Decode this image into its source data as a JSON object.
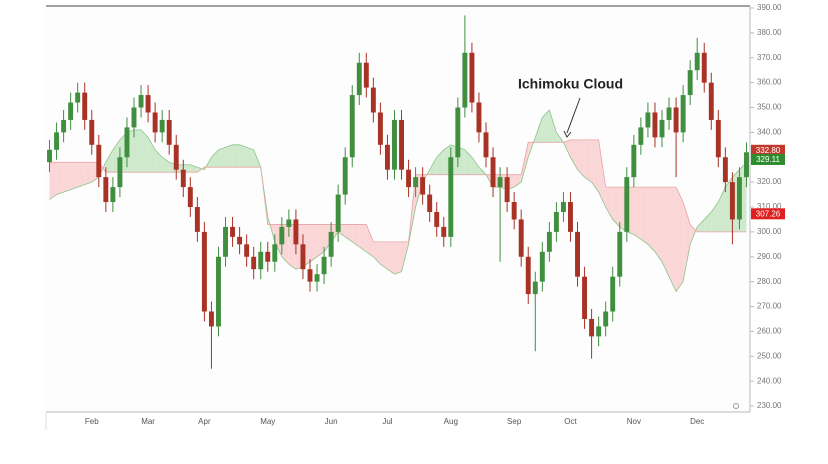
{
  "chart_data": {
    "type": "candlestick",
    "annotation": "Ichimoku Cloud",
    "categories": [
      null,
      null,
      null,
      null,
      null,
      null,
      "Feb",
      null,
      null,
      null,
      null,
      null,
      null,
      null,
      "Mar",
      null,
      null,
      null,
      null,
      null,
      null,
      null,
      "Apr",
      null,
      null,
      null,
      null,
      null,
      null,
      null,
      null,
      "May",
      null,
      null,
      null,
      null,
      null,
      null,
      null,
      null,
      "Jun",
      null,
      null,
      null,
      null,
      null,
      null,
      null,
      "Jul",
      null,
      null,
      null,
      null,
      null,
      null,
      null,
      null,
      "Aug",
      null,
      null,
      null,
      null,
      null,
      null,
      null,
      null,
      "Sep",
      null,
      null,
      null,
      null,
      null,
      null,
      null,
      "Oct",
      null,
      null,
      null,
      null,
      null,
      null,
      null,
      null,
      "Nov",
      null,
      null,
      null,
      null,
      null,
      null,
      null,
      null,
      "Dec",
      null,
      null,
      null,
      null,
      null,
      null,
      null
    ],
    "open": [
      328,
      333,
      340,
      345,
      352,
      356,
      345,
      335,
      322,
      312,
      318,
      330,
      342,
      350,
      355,
      348,
      340,
      345,
      335,
      325,
      318,
      310,
      300,
      268,
      262,
      290,
      302,
      298,
      295,
      290,
      285,
      292,
      288,
      295,
      302,
      305,
      295,
      285,
      280,
      283,
      290,
      300,
      315,
      330,
      355,
      368,
      358,
      348,
      335,
      325,
      345,
      325,
      318,
      322,
      315,
      308,
      302,
      298,
      330,
      350,
      372,
      352,
      340,
      330,
      318,
      322,
      312,
      305,
      290,
      275,
      280,
      292,
      300,
      308,
      312,
      300,
      282,
      265,
      258,
      262,
      268,
      282,
      300,
      322,
      335,
      342,
      348,
      338,
      345,
      350,
      340,
      355,
      365,
      372,
      360,
      345,
      330,
      320,
      305,
      322
    ],
    "high": [
      337,
      344,
      349,
      356,
      360,
      360,
      349,
      339,
      326,
      322,
      334,
      346,
      354,
      359,
      359,
      352,
      349,
      349,
      339,
      329,
      322,
      314,
      304,
      272,
      294,
      306,
      306,
      302,
      299,
      294,
      296,
      296,
      299,
      306,
      309,
      309,
      299,
      289,
      287,
      294,
      304,
      319,
      334,
      359,
      372,
      372,
      362,
      352,
      339,
      349,
      349,
      329,
      326,
      326,
      319,
      312,
      306,
      334,
      354,
      387,
      376,
      356,
      344,
      334,
      326,
      326,
      316,
      309,
      294,
      284,
      296,
      304,
      312,
      316,
      316,
      304,
      286,
      269,
      266,
      272,
      286,
      304,
      326,
      339,
      346,
      352,
      352,
      349,
      354,
      354,
      359,
      369,
      378,
      376,
      364,
      349,
      334,
      324,
      326,
      336
    ],
    "low": [
      324,
      329,
      336,
      341,
      348,
      341,
      331,
      318,
      308,
      308,
      314,
      326,
      338,
      346,
      344,
      336,
      336,
      331,
      321,
      314,
      306,
      296,
      264,
      245,
      258,
      286,
      294,
      291,
      286,
      281,
      281,
      284,
      284,
      291,
      298,
      291,
      281,
      276,
      276,
      279,
      286,
      296,
      311,
      326,
      351,
      354,
      344,
      331,
      321,
      321,
      321,
      314,
      314,
      311,
      304,
      298,
      294,
      294,
      326,
      346,
      348,
      336,
      326,
      314,
      288,
      308,
      301,
      286,
      271,
      252,
      276,
      288,
      296,
      304,
      296,
      278,
      261,
      249,
      254,
      258,
      264,
      278,
      296,
      318,
      331,
      338,
      334,
      334,
      341,
      322,
      336,
      351,
      361,
      356,
      341,
      326,
      316,
      295,
      301,
      318
    ],
    "close": [
      333,
      340,
      345,
      352,
      356,
      345,
      335,
      322,
      312,
      318,
      330,
      342,
      350,
      355,
      348,
      340,
      345,
      335,
      325,
      318,
      310,
      300,
      268,
      262,
      290,
      302,
      298,
      295,
      290,
      285,
      292,
      288,
      295,
      302,
      305,
      295,
      285,
      280,
      283,
      290,
      300,
      315,
      330,
      355,
      368,
      358,
      348,
      335,
      325,
      345,
      325,
      318,
      322,
      315,
      308,
      302,
      298,
      330,
      350,
      372,
      352,
      340,
      330,
      318,
      322,
      312,
      305,
      290,
      275,
      280,
      292,
      300,
      308,
      312,
      300,
      282,
      265,
      258,
      262,
      268,
      282,
      300,
      322,
      335,
      342,
      348,
      338,
      345,
      350,
      340,
      355,
      365,
      372,
      360,
      345,
      330,
      320,
      305,
      322,
      332
    ],
    "up_color": "#3f8f3f",
    "down_color": "#a93226",
    "cloud": {
      "span_a": [
        313,
        315,
        316,
        317,
        318,
        319,
        320,
        322,
        328,
        333,
        337,
        340,
        341,
        341,
        338,
        333,
        330,
        328,
        327,
        327,
        327,
        326,
        325,
        330,
        333,
        334,
        335,
        335,
        334,
        333,
        326,
        306,
        296,
        290,
        287,
        285,
        286,
        288,
        290,
        292,
        296,
        300,
        298,
        296,
        294,
        292,
        290,
        287,
        285,
        283,
        284,
        295,
        310,
        320,
        325,
        330,
        333,
        335,
        334,
        333,
        330,
        326,
        323,
        318,
        318,
        317,
        318,
        320,
        330,
        338,
        346,
        349,
        340,
        336,
        330,
        325,
        322,
        320,
        316,
        310,
        305,
        302,
        300,
        299,
        297,
        295,
        292,
        288,
        282,
        276,
        280,
        295,
        302,
        305,
        308,
        312,
        318,
        322,
        325,
        328
      ],
      "span_b": [
        328,
        328,
        328,
        328,
        328,
        328,
        328,
        328,
        324,
        324,
        324,
        324,
        324,
        324,
        324,
        324,
        324,
        324,
        324,
        324,
        324,
        324,
        326,
        326,
        326,
        326,
        326,
        326,
        326,
        326,
        326,
        303,
        303,
        303,
        303,
        303,
        303,
        303,
        303,
        303,
        303,
        303,
        303,
        303,
        303,
        303,
        296,
        296,
        296,
        296,
        296,
        296,
        323,
        323,
        323,
        323,
        323,
        323,
        323,
        323,
        323,
        323,
        323,
        323,
        323,
        323,
        323,
        323,
        336,
        336,
        336,
        336,
        336,
        336,
        337,
        337,
        337,
        337,
        337,
        318,
        318,
        318,
        318,
        318,
        318,
        318,
        318,
        318,
        318,
        318,
        312,
        303,
        300,
        300,
        300,
        300,
        300,
        300,
        300,
        300
      ],
      "bullish_color": "#cfe9cc",
      "bullish_line": "#8cc58a",
      "bearish_color": "#fad6d6",
      "bearish_line": "#e6a5a5"
    },
    "price_markers": [
      {
        "value": 332.8,
        "label": "332.80",
        "color": "#c0392b"
      },
      {
        "value": 329.11,
        "label": "329.11",
        "color": "#2e8b2e"
      },
      {
        "value": 307.26,
        "label": "307.26",
        "color": "#e02020"
      }
    ],
    "ylim": [
      227.6,
      390.8
    ],
    "yticks": [
      {
        "value": 230,
        "label": "230.00"
      },
      {
        "value": 240,
        "label": "240.00"
      },
      {
        "value": 250,
        "label": "250.00"
      },
      {
        "value": 260,
        "label": "260.00"
      },
      {
        "value": 270,
        "label": "270.00"
      },
      {
        "value": 280,
        "label": "280.00"
      },
      {
        "value": 290,
        "label": "290.00"
      },
      {
        "value": 300,
        "label": "300.00"
      },
      {
        "value": 310,
        "label": "310.00"
      },
      {
        "value": 320,
        "label": "320.00"
      },
      {
        "value": 330,
        "label": "330.00"
      },
      {
        "value": 340,
        "label": "340.00"
      },
      {
        "value": 350,
        "label": "350.00"
      },
      {
        "value": 360,
        "label": "360.00"
      },
      {
        "value": 370,
        "label": "370.00"
      },
      {
        "value": 380,
        "label": "380.00"
      },
      {
        "value": 390,
        "label": "390.00"
      }
    ]
  }
}
